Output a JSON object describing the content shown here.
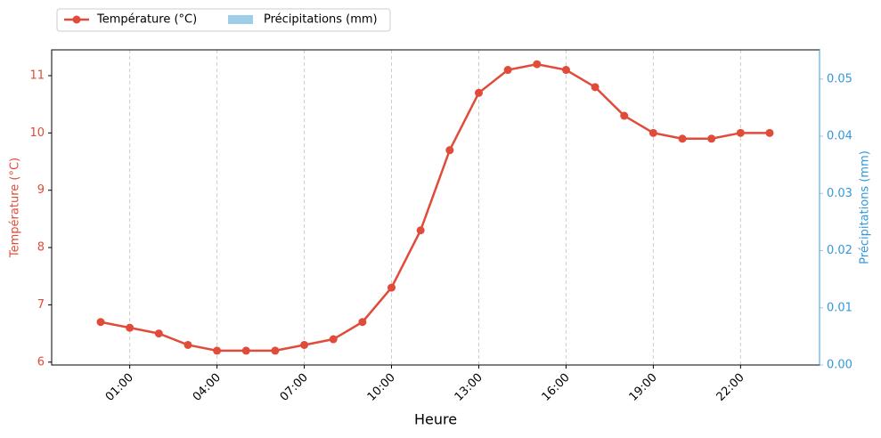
{
  "chart_data": {
    "type": "line",
    "categories": [
      null,
      "01:00",
      null,
      null,
      "04:00",
      null,
      null,
      "07:00",
      null,
      null,
      "10:00",
      null,
      null,
      "13:00",
      null,
      null,
      "16:00",
      null,
      null,
      "19:00",
      null,
      null,
      "22:00",
      null
    ],
    "series": [
      {
        "name": "Température (°C)",
        "color": "#e04b3a",
        "type": "line",
        "values": [
          6.7,
          6.6,
          6.5,
          6.3,
          6.2,
          6.2,
          6.2,
          6.3,
          6.4,
          6.7,
          7.3,
          8.3,
          9.7,
          10.7,
          11.1,
          11.2,
          11.1,
          10.8,
          10.3,
          10.0,
          9.9,
          9.9,
          10.0,
          10.0
        ]
      },
      {
        "name": "Précipitations (mm)",
        "color": "#9ecde9",
        "type": "bar",
        "axis": "y2",
        "values": [
          0,
          0,
          0,
          0,
          0,
          0,
          0,
          0,
          0,
          0,
          0,
          0,
          0,
          0,
          0,
          0,
          0,
          0,
          0,
          0,
          0,
          0,
          0,
          0
        ]
      }
    ],
    "xlabel": "Heure",
    "ylabel": "Température (°C)",
    "y2label": "Précipitations (mm)",
    "ylim": [
      5.95,
      11.45
    ],
    "yticks": [
      6,
      7,
      8,
      9,
      10,
      11
    ],
    "y2lim": [
      0,
      0.0551
    ],
    "y2ticks": [
      {
        "value": 0,
        "label": "0.00"
      },
      {
        "value": 0.01,
        "label": "0.01"
      },
      {
        "value": 0.02,
        "label": "0.02"
      },
      {
        "value": 0.03,
        "label": "0.03"
      },
      {
        "value": 0.04,
        "label": "0.04"
      },
      {
        "value": 0.05,
        "label": "0.05"
      }
    ],
    "grid": "x",
    "legend": "top left"
  }
}
